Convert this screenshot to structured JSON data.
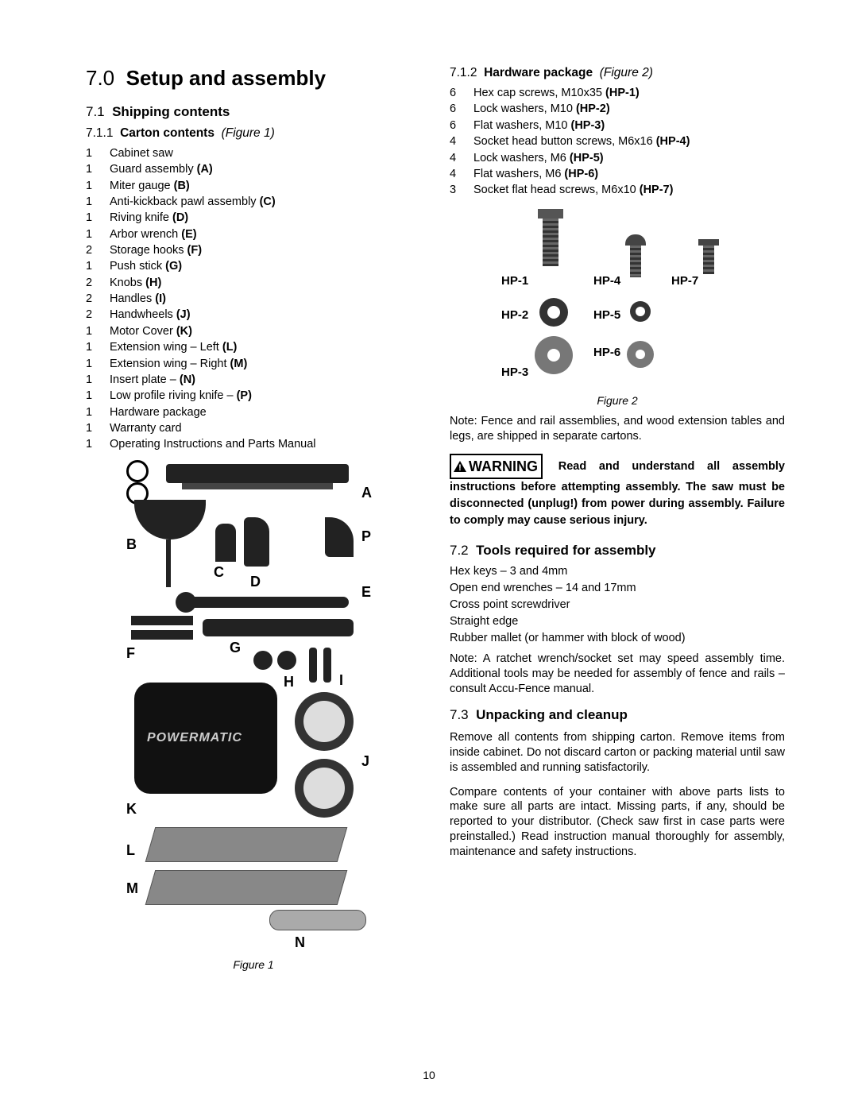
{
  "page_number": "10",
  "h1": {
    "num": "7.0",
    "title": "Setup and assembly"
  },
  "s71": {
    "num": "7.1",
    "title": "Shipping contents"
  },
  "s711": {
    "num": "7.1.1",
    "title": "Carton contents",
    "fig": "(Figure 1)"
  },
  "carton": [
    {
      "qty": "1",
      "name": "Cabinet saw",
      "ref": ""
    },
    {
      "qty": "1",
      "name": "Guard assembly",
      "ref": "(A)"
    },
    {
      "qty": "1",
      "name": "Miter gauge",
      "ref": "(B)"
    },
    {
      "qty": "1",
      "name": "Anti-kickback pawl assembly",
      "ref": "(C)"
    },
    {
      "qty": "1",
      "name": "Riving knife",
      "ref": "(D)"
    },
    {
      "qty": "1",
      "name": "Arbor wrench",
      "ref": "(E)"
    },
    {
      "qty": "2",
      "name": "Storage hooks",
      "ref": "(F)"
    },
    {
      "qty": "1",
      "name": "Push stick",
      "ref": "(G)"
    },
    {
      "qty": "2",
      "name": "Knobs",
      "ref": "(H)"
    },
    {
      "qty": "2",
      "name": "Handles",
      "ref": "(I)"
    },
    {
      "qty": "2",
      "name": "Handwheels",
      "ref": "(J)"
    },
    {
      "qty": "1",
      "name": "Motor Cover",
      "ref": "(K)"
    },
    {
      "qty": "1",
      "name": "Extension wing – Left",
      "ref": "(L)"
    },
    {
      "qty": "1",
      "name": "Extension wing – Right",
      "ref": "(M)"
    },
    {
      "qty": "1",
      "name": "Insert plate –",
      "ref": "(N)"
    },
    {
      "qty": "1",
      "name": "Low profile riving knife –",
      "ref": "(P)"
    },
    {
      "qty": "1",
      "name": "Hardware package",
      "ref": ""
    },
    {
      "qty": "1",
      "name": "Warranty card",
      "ref": ""
    },
    {
      "qty": "1",
      "name": "Operating Instructions and Parts Manual",
      "ref": ""
    }
  ],
  "fig1_caption": "Figure 1",
  "fig1_labels": [
    "A",
    "B",
    "C",
    "D",
    "E",
    "F",
    "G",
    "H",
    "I",
    "J",
    "K",
    "L",
    "M",
    "N",
    "P"
  ],
  "s712": {
    "num": "7.1.2",
    "title": "Hardware package",
    "fig": "(Figure 2)"
  },
  "hardware": [
    {
      "qty": "6",
      "name": "Hex cap screws, M10x35",
      "ref": "(HP-1)"
    },
    {
      "qty": "6",
      "name": "Lock washers, M10",
      "ref": "(HP-2)"
    },
    {
      "qty": "6",
      "name": "Flat washers, M10",
      "ref": "(HP-3)"
    },
    {
      "qty": "4",
      "name": "Socket head button screws, M6x16",
      "ref": "(HP-4)"
    },
    {
      "qty": "4",
      "name": "Lock washers, M6",
      "ref": "(HP-5)"
    },
    {
      "qty": "4",
      "name": "Flat washers, M6",
      "ref": "(HP-6)"
    },
    {
      "qty": "3",
      "name": "Socket flat head screws, M6x10",
      "ref": "(HP-7)"
    }
  ],
  "fig2_caption": "Figure 2",
  "fig2_labels": [
    "HP-1",
    "HP-2",
    "HP-3",
    "HP-4",
    "HP-5",
    "HP-6",
    "HP-7"
  ],
  "note1": "Note: Fence and rail assemblies, and wood extension tables and legs, are shipped in separate cartons.",
  "warning_label": "WARNING",
  "warning_body": "Read and understand all assembly instructions before attempting assembly. The saw must be disconnected (unplug!) from power during assembly. Failure to comply may cause serious injury.",
  "s72": {
    "num": "7.2",
    "title": "Tools required for assembly"
  },
  "tools": [
    "Hex keys – 3 and 4mm",
    "Open end wrenches – 14 and 17mm",
    "Cross point screwdriver",
    "Straight edge",
    "Rubber mallet (or hammer with block of wood)"
  ],
  "note2": "Note: A ratchet wrench/socket set may speed assembly time.  Additional tools may be needed for assembly of fence and rails – consult Accu-Fence manual.",
  "s73": {
    "num": "7.3",
    "title": "Unpacking and cleanup"
  },
  "unpack_p1": "Remove all contents from shipping carton. Remove items from inside cabinet. Do not discard carton or packing material until saw is assembled and running satisfactorily.",
  "unpack_p2": "Compare contents of your container with above parts lists to make sure all parts are intact. Missing parts, if any, should be reported to your distributor. (Check saw first in case parts were preinstalled.) Read instruction manual thoroughly for assembly, maintenance and safety instructions.",
  "brand": "POWERMATIC"
}
